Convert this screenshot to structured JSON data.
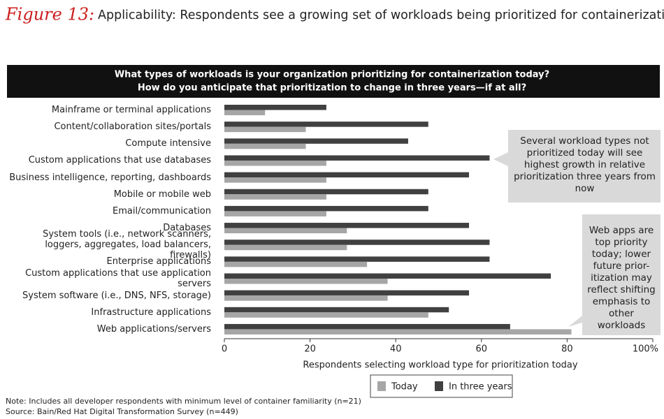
{
  "chart_data": {
    "type": "bar",
    "orientation": "horizontal",
    "figure_label": "Figure 13:",
    "title": "Applicability: Respondents see a growing set of workloads being prioritized for containerization",
    "question": [
      "What types of workloads is your organization prioritizing for containerization today?",
      "How do you anticipate that prioritization to change in three years—if at all?"
    ],
    "categories": [
      "Mainframe or terminal applications",
      "Content/collaboration sites/portals",
      "Compute intensive",
      "Custom applications that use databases",
      "Business intelligence, reporting, dashboards",
      "Mobile or mobile web",
      "Email/communication",
      "Databases",
      "System tools (i.e., network scanners, loggers, aggregates, load balancers, firewalls)",
      "Enterprise applications",
      "Custom applications that use application servers",
      "System software (i.e., DNS, NFS, storage)",
      "Infrastructure applications",
      "Web applications/servers"
    ],
    "series": [
      {
        "name": "Today",
        "color": "#a6a6a6",
        "values": [
          9.5,
          19,
          19,
          23.8,
          23.8,
          23.8,
          23.8,
          28.6,
          28.6,
          33.3,
          38.1,
          38.1,
          47.6,
          81
        ]
      },
      {
        "name": "In three years",
        "color": "#404040",
        "values": [
          23.8,
          47.6,
          42.9,
          61.9,
          57.1,
          47.6,
          47.6,
          57.1,
          61.9,
          61.9,
          76.2,
          57.1,
          52.4,
          66.7
        ]
      }
    ],
    "xlim": [
      0,
      100
    ],
    "xticks": [
      0,
      20,
      40,
      60,
      80,
      {
        "value": 100,
        "label": "100%"
      }
    ],
    "x_label": "Respondents selecting workload type for prioritization today",
    "annotations": [
      "Several workload types not prioritized today will see highest growth in relative prioritization three years from now",
      "Web apps are top priority today; lower future prior-itization may reflect shifting emphasis to other workloads"
    ],
    "notes": [
      "Note: Includes all developer respondents with minimum level of container familiarity (n=21)",
      "Source: Bain/Red Hat Digital Transformation Survey (n=449)"
    ]
  }
}
